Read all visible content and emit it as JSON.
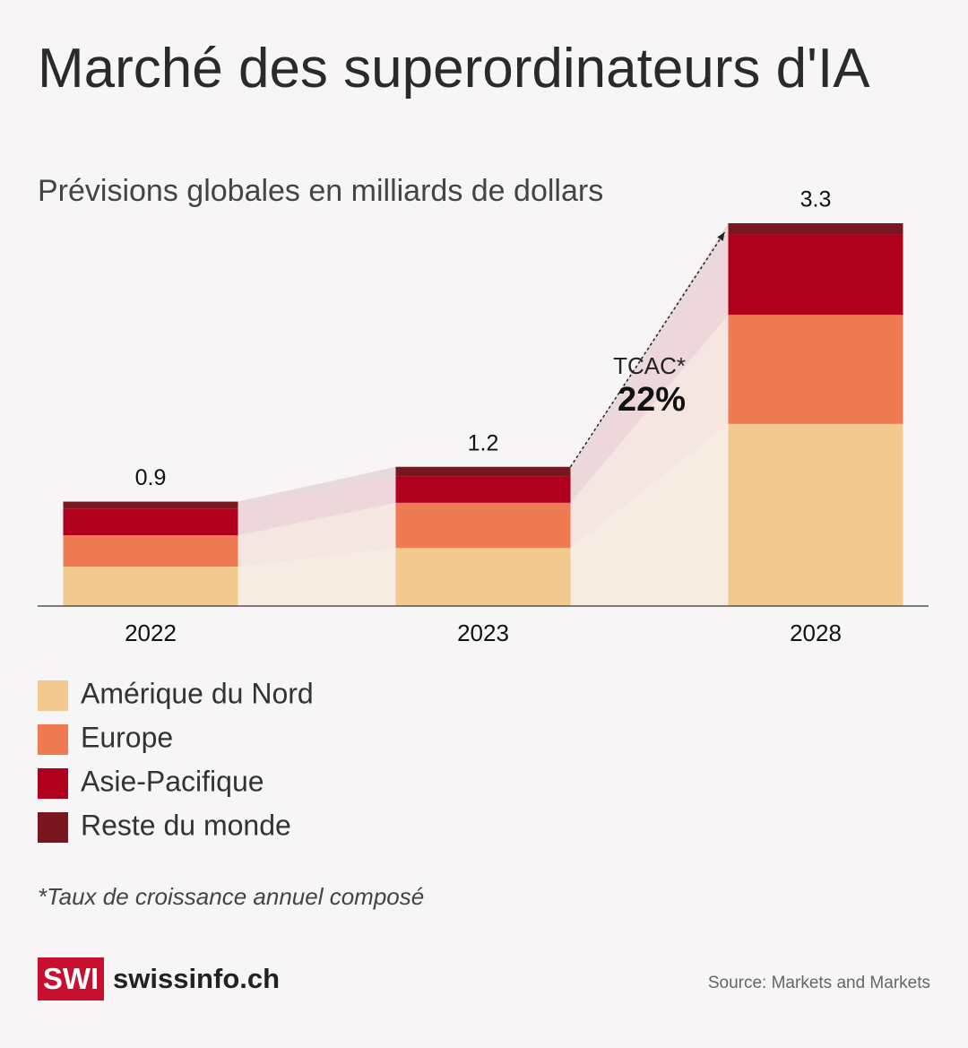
{
  "chart_data": {
    "type": "stacked_bar",
    "title": "Marché des superordinateurs d'IA",
    "subtitle": "Prévisions globales en milliards de dollars",
    "categories": [
      "2022",
      "2023",
      "2028"
    ],
    "series": [
      {
        "name": "Amérique du Nord",
        "color": "#f2c98f",
        "values": [
          0.34,
          0.5,
          1.57
        ]
      },
      {
        "name": "Europe",
        "color": "#ee7b52",
        "values": [
          0.27,
          0.39,
          0.94
        ]
      },
      {
        "name": "Asie-Pacifique",
        "color": "#b0001e",
        "values": [
          0.23,
          0.23,
          0.69
        ]
      },
      {
        "name": "Reste du monde",
        "color": "#7a1620",
        "values": [
          0.06,
          0.08,
          0.1
        ]
      }
    ],
    "totals": [
      0.9,
      1.2,
      3.3
    ],
    "annotation": {
      "label": "TCAC*",
      "value": "22%"
    },
    "footnote": "*Taux de croissance annuel composé",
    "source": "Source: Markets and Markets"
  },
  "brand": {
    "logo": "SWI",
    "name": "swissinfo.ch"
  }
}
